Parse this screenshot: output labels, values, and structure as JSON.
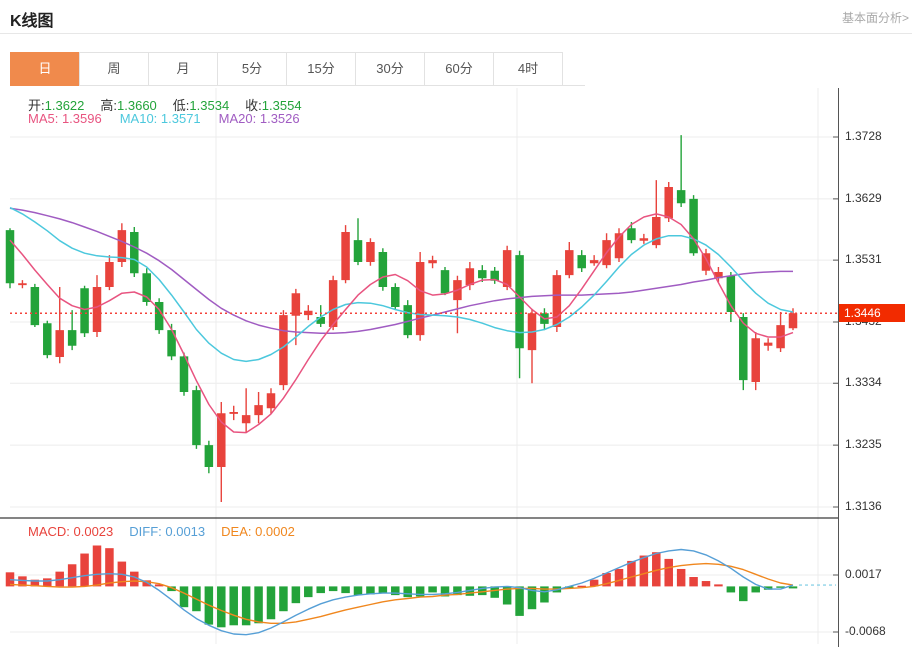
{
  "header": {
    "title": "K线图",
    "link": "基本面分析>"
  },
  "tabs": {
    "items": [
      {
        "label": "日",
        "active": true
      },
      {
        "label": "周",
        "active": false
      },
      {
        "label": "月",
        "active": false
      },
      {
        "label": "5分",
        "active": false
      },
      {
        "label": "15分",
        "active": false
      },
      {
        "label": "30分",
        "active": false
      },
      {
        "label": "60分",
        "active": false
      },
      {
        "label": "4时",
        "active": false
      }
    ]
  },
  "legend": {
    "ohlc": [
      {
        "label": "开:",
        "value": "1.3622"
      },
      {
        "label": "高:",
        "value": "1.3660"
      },
      {
        "label": "低:",
        "value": "1.3534"
      },
      {
        "label": "收:",
        "value": "1.3554"
      }
    ],
    "ma": [
      {
        "text": "MA5: 1.3596",
        "color_key": "ma5"
      },
      {
        "text": "MA10: 1.3571",
        "color_key": "ma10"
      },
      {
        "text": "MA20: 1.3526",
        "color_key": "ma20"
      }
    ],
    "macd": [
      {
        "text": "MACD: 0.0023",
        "color_key": "up"
      },
      {
        "text": "DIFF: 0.0013",
        "color_key": "diff"
      },
      {
        "text": "DEA: 0.0002",
        "color_key": "dea"
      }
    ]
  },
  "colors": {
    "up": "#e8433c",
    "down": "#23a33a",
    "ma5": "#e85480",
    "ma10": "#4cc8dd",
    "ma20": "#a05cc2",
    "diff": "#569fd6",
    "dea": "#f0871e",
    "badge": "#f22b00",
    "price_line": "#f4423b",
    "tab_active": "#f08a4c",
    "dash_ext": "#8fd4e8"
  },
  "chart_data": {
    "type": "candlestick+macd",
    "title": "K线图",
    "last_price": "1.3446",
    "y_axis": {
      "main_labels": [
        "1.3728",
        "1.3629",
        "1.3531",
        "1.3432",
        "1.3334",
        "1.3235",
        "1.3136"
      ],
      "macd_labels": [
        "0.0017",
        "-0.0068"
      ]
    },
    "candles": [
      [
        1.3579,
        1.3582,
        1.3486,
        1.3494
      ],
      [
        1.3491,
        1.3499,
        1.3486,
        1.3494
      ],
      [
        1.3488,
        1.3493,
        1.3424,
        1.3427
      ],
      [
        1.343,
        1.3434,
        1.3374,
        1.3379
      ],
      [
        1.3376,
        1.3488,
        1.3366,
        1.3419
      ],
      [
        1.3419,
        1.3451,
        1.3387,
        1.3394
      ],
      [
        1.3486,
        1.349,
        1.3408,
        1.3414
      ],
      [
        1.3416,
        1.3507,
        1.3408,
        1.3488
      ],
      [
        1.3488,
        1.3539,
        1.3483,
        1.3528
      ],
      [
        1.3528,
        1.359,
        1.352,
        1.3579
      ],
      [
        1.3576,
        1.3584,
        1.3504,
        1.351
      ],
      [
        1.351,
        1.3518,
        1.3458,
        1.3464
      ],
      [
        1.3464,
        1.347,
        1.3413,
        1.3419
      ],
      [
        1.3419,
        1.3429,
        1.3371,
        1.3377
      ],
      [
        1.3377,
        1.3383,
        1.3314,
        1.332
      ],
      [
        1.3323,
        1.333,
        1.3229,
        1.3235
      ],
      [
        1.3235,
        1.3242,
        1.319,
        1.32
      ],
      [
        1.32,
        1.3304,
        1.3144,
        1.3286
      ],
      [
        1.3285,
        1.3298,
        1.3275,
        1.3288
      ],
      [
        1.327,
        1.3326,
        1.3256,
        1.3283
      ],
      [
        1.3283,
        1.332,
        1.327,
        1.3299
      ],
      [
        1.3294,
        1.3326,
        1.3285,
        1.3318
      ],
      [
        1.3331,
        1.3451,
        1.3323,
        1.3443
      ],
      [
        1.3442,
        1.3485,
        1.3395,
        1.3478
      ],
      [
        1.3443,
        1.3459,
        1.3435,
        1.345
      ],
      [
        1.344,
        1.3459,
        1.3424,
        1.3429
      ],
      [
        1.3424,
        1.3506,
        1.3419,
        1.3499
      ],
      [
        1.3499,
        1.3587,
        1.3494,
        1.3576
      ],
      [
        1.3563,
        1.3598,
        1.3523,
        1.3528
      ],
      [
        1.3528,
        1.3566,
        1.3522,
        1.356
      ],
      [
        1.3544,
        1.355,
        1.3482,
        1.3488
      ],
      [
        1.3488,
        1.3494,
        1.3451,
        1.3456
      ],
      [
        1.3459,
        1.3467,
        1.3406,
        1.3411
      ],
      [
        1.3411,
        1.3544,
        1.3402,
        1.3528
      ],
      [
        1.3526,
        1.3538,
        1.3518,
        1.3531
      ],
      [
        1.3515,
        1.352,
        1.3475,
        1.3478
      ],
      [
        1.3467,
        1.3506,
        1.3414,
        1.3499
      ],
      [
        1.3491,
        1.3528,
        1.3483,
        1.3518
      ],
      [
        1.3515,
        1.3523,
        1.3496,
        1.3502
      ],
      [
        1.3514,
        1.352,
        1.3493,
        1.3498
      ],
      [
        1.3488,
        1.3554,
        1.3483,
        1.3547
      ],
      [
        1.3539,
        1.3546,
        1.3342,
        1.339
      ],
      [
        1.3387,
        1.3453,
        1.3334,
        1.3446
      ],
      [
        1.3446,
        1.3454,
        1.3419,
        1.3429
      ],
      [
        1.3424,
        1.3515,
        1.3416,
        1.3507
      ],
      [
        1.3507,
        1.356,
        1.3502,
        1.3547
      ],
      [
        1.3539,
        1.3547,
        1.3512,
        1.3518
      ],
      [
        1.3526,
        1.3539,
        1.3522,
        1.3531
      ],
      [
        1.3523,
        1.3574,
        1.3518,
        1.3563
      ],
      [
        1.3534,
        1.3582,
        1.3528,
        1.3574
      ],
      [
        1.3582,
        1.3592,
        1.3558,
        1.3563
      ],
      [
        1.3562,
        1.3573,
        1.3557,
        1.3566
      ],
      [
        1.3555,
        1.3659,
        1.355,
        1.36
      ],
      [
        1.3598,
        1.3656,
        1.3592,
        1.3648
      ],
      [
        1.3643,
        1.3731,
        1.3616,
        1.3622
      ],
      [
        1.3629,
        1.3635,
        1.3538,
        1.3542
      ],
      [
        1.3514,
        1.3549,
        1.3507,
        1.3542
      ],
      [
        1.3502,
        1.352,
        1.3496,
        1.3512
      ],
      [
        1.3506,
        1.3512,
        1.3432,
        1.3448
      ],
      [
        1.344,
        1.3446,
        1.3323,
        1.3339
      ],
      [
        1.3336,
        1.3416,
        1.3323,
        1.3406
      ],
      [
        1.3394,
        1.3406,
        1.3386,
        1.3399
      ],
      [
        1.339,
        1.3448,
        1.3384,
        1.3427
      ],
      [
        1.3422,
        1.3454,
        1.3419,
        1.3446
      ]
    ],
    "ma5": [
      1.3563,
      1.354,
      1.3515,
      1.3492,
      1.347,
      1.3458,
      1.3452,
      1.3456,
      1.3466,
      1.3478,
      1.348,
      1.3472,
      1.3452,
      1.342,
      1.338,
      1.3338,
      1.33,
      1.3272,
      1.3256,
      1.3255,
      1.3268,
      1.3285,
      1.331,
      1.334,
      1.3372,
      1.3402,
      1.3428,
      1.3452,
      1.3475,
      1.3492,
      1.3504,
      1.3508,
      1.3498,
      1.3482,
      1.3475,
      1.3477,
      1.3483,
      1.3492,
      1.3499,
      1.35,
      1.3492,
      1.3472,
      1.3452,
      1.3437,
      1.344,
      1.3458,
      1.3485,
      1.3514,
      1.3543,
      1.3568,
      1.3588,
      1.36,
      1.3605,
      1.36,
      1.3588,
      1.3565,
      1.3533,
      1.3495,
      1.3458,
      1.343,
      1.3414,
      1.3408,
      1.3408,
      1.3415
    ],
    "ma10": [
      1.3615,
      1.3605,
      1.3592,
      1.3578,
      1.3562,
      1.355,
      1.3542,
      1.3538,
      1.3536,
      1.3535,
      1.3532,
      1.352,
      1.35,
      1.3475,
      1.3448,
      1.342,
      1.3398,
      1.3382,
      1.3372,
      1.3369,
      1.3372,
      1.338,
      1.3392,
      1.3408,
      1.3425,
      1.344,
      1.3452,
      1.346,
      1.3463,
      1.3462,
      1.3458,
      1.3452,
      1.3447,
      1.3444,
      1.3443,
      1.3442,
      1.344,
      1.3436,
      1.343,
      1.3423,
      1.3418,
      1.3415,
      1.3416,
      1.342,
      1.3428,
      1.344,
      1.3456,
      1.3475,
      1.3497,
      1.352,
      1.354,
      1.3555,
      1.3565,
      1.357,
      1.357,
      1.3565,
      1.3555,
      1.354,
      1.352,
      1.3498,
      1.3478,
      1.3462,
      1.3452,
      1.3448
    ],
    "ma20": [
      1.3614,
      1.3611,
      1.3607,
      1.3602,
      1.3597,
      1.3591,
      1.3584,
      1.3577,
      1.3569,
      1.3561,
      1.3552,
      1.3542,
      1.353,
      1.3516,
      1.35,
      1.3484,
      1.3468,
      1.3454,
      1.3443,
      1.3434,
      1.3427,
      1.3422,
      1.3418,
      1.3416,
      1.3415,
      1.3414,
      1.3414,
      1.3415,
      1.3417,
      1.342,
      1.3424,
      1.3428,
      1.3433,
      1.3438,
      1.3443,
      1.3448,
      1.3453,
      1.3458,
      1.3462,
      1.3466,
      1.3469,
      1.3471,
      1.3473,
      1.3474,
      1.3475,
      1.3475,
      1.3475,
      1.3476,
      1.3477,
      1.3478,
      1.348,
      1.3483,
      1.3486,
      1.3489,
      1.3492,
      1.3496,
      1.3499,
      1.3503,
      1.3506,
      1.3509,
      1.3511,
      1.3512,
      1.3513,
      1.3513
    ],
    "macd": {
      "hist": [
        0.0021,
        0.0015,
        0.001,
        0.0012,
        0.0022,
        0.0033,
        0.0049,
        0.0061,
        0.0057,
        0.0037,
        0.0022,
        0.0009,
        0.0003,
        -0.0007,
        -0.0031,
        -0.0037,
        -0.0057,
        -0.0061,
        -0.0058,
        -0.0058,
        -0.0055,
        -0.0049,
        -0.0037,
        -0.0025,
        -0.0016,
        -0.001,
        -0.0007,
        -0.001,
        -0.0013,
        -0.0012,
        -0.001,
        -0.0013,
        -0.0016,
        -0.0015,
        -0.0009,
        -0.0015,
        -0.0013,
        -0.0014,
        -0.0013,
        -0.0017,
        -0.0027,
        -0.0044,
        -0.0034,
        -0.0024,
        -0.0009,
        -0.0003,
        0.0001,
        0.001,
        0.002,
        0.0026,
        0.0038,
        0.0046,
        0.0051,
        0.0041,
        0.0026,
        0.0014,
        0.0008,
        0.0003,
        -0.0009,
        -0.0022,
        -0.0009,
        -0.0005,
        -0.0002,
        -0.0003
      ],
      "diff": [
        0.001,
        0.0009,
        0.0008,
        0.0008,
        0.001,
        0.0013,
        0.0016,
        0.0018,
        0.0019,
        0.0018,
        0.0014,
        0.0006,
        -0.0006,
        -0.002,
        -0.0035,
        -0.0048,
        -0.0058,
        -0.0066,
        -0.0071,
        -0.0072,
        -0.0069,
        -0.0062,
        -0.0053,
        -0.0043,
        -0.0034,
        -0.0026,
        -0.002,
        -0.0016,
        -0.0013,
        -0.0011,
        -0.001,
        -0.001,
        -0.0011,
        -0.0012,
        -0.0012,
        -0.0011,
        -0.0009,
        -0.0006,
        -0.0003,
        -0.0001,
        0.0,
        -0.0002,
        -0.0006,
        -0.0008,
        -0.0005,
        0.0,
        0.0005,
        0.0012,
        0.002,
        0.0028,
        0.0036,
        0.0043,
        0.0049,
        0.0053,
        0.0055,
        0.0053,
        0.0047,
        0.0038,
        0.0027,
        0.0014,
        0.0003,
        -0.0004,
        -0.0004,
        0.0002
      ],
      "dea": [
        0.0003,
        0.0002,
        0.0001,
        0.0,
        -0.0001,
        -0.0001,
        0.0,
        0.0002,
        0.0005,
        0.0007,
        0.0008,
        0.0007,
        0.0004,
        -0.0002,
        -0.001,
        -0.0019,
        -0.0028,
        -0.0036,
        -0.0043,
        -0.0049,
        -0.0053,
        -0.0055,
        -0.0055,
        -0.0053,
        -0.0049,
        -0.0045,
        -0.004,
        -0.0035,
        -0.0031,
        -0.0027,
        -0.0023,
        -0.002,
        -0.0018,
        -0.0016,
        -0.0015,
        -0.0013,
        -0.0012,
        -0.001,
        -0.0008,
        -0.0006,
        -0.0004,
        -0.0003,
        -0.0003,
        -0.0004,
        -0.0004,
        -0.0003,
        -0.0002,
        0.0,
        0.0004,
        0.0009,
        0.0014,
        0.0019,
        0.0024,
        0.0028,
        0.0031,
        0.0033,
        0.0034,
        0.0033,
        0.003,
        0.0025,
        0.0018,
        0.0011,
        0.0005,
        0.0002
      ]
    }
  }
}
